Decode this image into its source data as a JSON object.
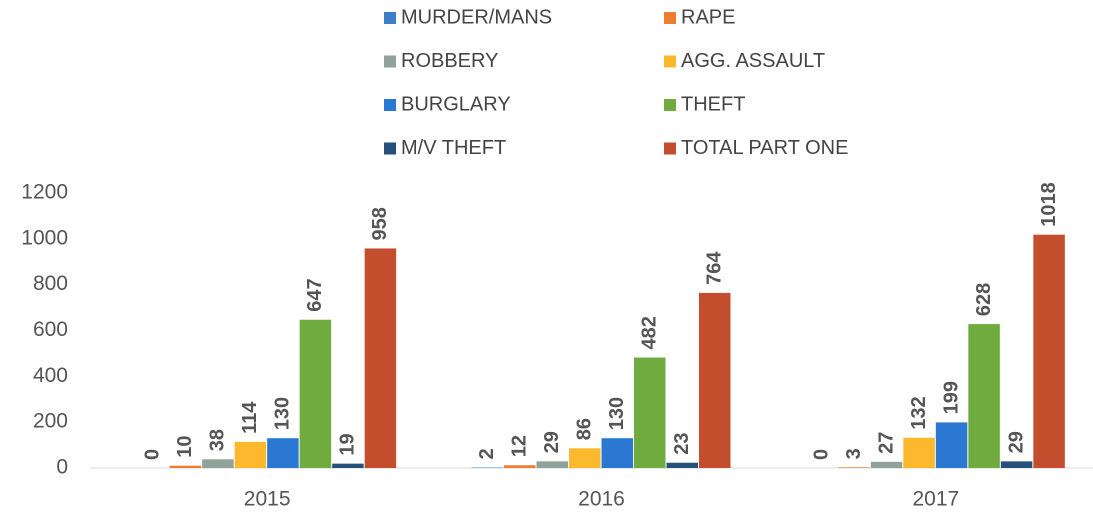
{
  "chart_data": {
    "type": "bar",
    "categories": [
      "2015",
      "2016",
      "2017"
    ],
    "series": [
      {
        "name": "MURDER/MANS",
        "color": "#3c7fc4",
        "values": [
          0,
          2,
          0
        ]
      },
      {
        "name": "RAPE",
        "color": "#ed7d31",
        "values": [
          10,
          12,
          3
        ]
      },
      {
        "name": "ROBBERY",
        "color": "#8fa39a",
        "values": [
          38,
          29,
          27
        ]
      },
      {
        "name": "AGG. ASSAULT",
        "color": "#fdb92e",
        "values": [
          114,
          86,
          132
        ]
      },
      {
        "name": "BURGLARY",
        "color": "#2a78d2",
        "values": [
          130,
          130,
          199
        ]
      },
      {
        "name": "THEFT",
        "color": "#6fab3f",
        "values": [
          647,
          482,
          628
        ]
      },
      {
        "name": "M/V THEFT",
        "color": "#26507c",
        "values": [
          19,
          23,
          29
        ]
      },
      {
        "name": "TOTAL PART ONE",
        "color": "#c24e2e",
        "values": [
          958,
          764,
          1018
        ]
      }
    ],
    "ylim": [
      0,
      1200
    ],
    "yticks": [
      0,
      200,
      400,
      600,
      800,
      1000,
      1200
    ],
    "grid": false,
    "legend": "top"
  }
}
